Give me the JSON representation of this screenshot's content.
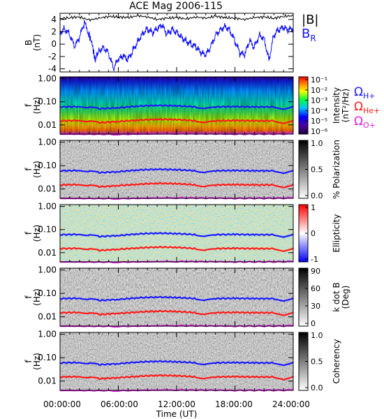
{
  "figure": {
    "title": "ACE Mag 2006-115",
    "xlabel": "Time (UT)",
    "x_ticks": [
      "00:00:00",
      "06:00:00",
      "12:00:00",
      "18:00:00",
      "24:00:00"
    ]
  },
  "legend": {
    "b_total": "|B|",
    "b_r_main": "B",
    "b_r_sub": "R",
    "cyclotron": [
      {
        "symbol": "Ω",
        "ion": "H+",
        "color": "#1a1aff"
      },
      {
        "symbol": "Ω",
        "ion": "He+",
        "color": "#ff1a1a"
      },
      {
        "symbol": "Ω",
        "ion": "O+",
        "color": "#e01ee0"
      }
    ]
  },
  "panels": [
    {
      "id": "b-field",
      "ylabel_1": "B",
      "ylabel_2": "(nT)",
      "y_ticks": [
        "4",
        "2",
        "0",
        "-2",
        "-4"
      ]
    },
    {
      "id": "intensity",
      "ylabel_1": "f",
      "ylabel_2": "(Hz)",
      "y_ticks": [
        "1.00",
        "0.10",
        "0.01"
      ],
      "colorbar_ticks": [
        "10⁻¹",
        "10⁻²",
        "10⁻³",
        "10⁻⁴",
        "10⁻⁵",
        "10⁻⁶"
      ],
      "colorbar_label_1": "Intensity",
      "colorbar_label_2": "(nT²/Hz)"
    },
    {
      "id": "polarization",
      "ylabel_1": "f",
      "ylabel_2": "(Hz)",
      "y_ticks": [
        "1.00",
        "0.10",
        "0.01"
      ],
      "colorbar_ticks": [
        "1.0",
        "0.5",
        "0.0"
      ],
      "colorbar_label_1": "% Polarization"
    },
    {
      "id": "ellipticity",
      "ylabel_1": "f",
      "ylabel_2": "(Hz)",
      "y_ticks": [
        "1.00",
        "0.10",
        "0.01"
      ],
      "colorbar_ticks": [
        "1",
        "0",
        "-1"
      ],
      "colorbar_label_1": "Ellipticity"
    },
    {
      "id": "k-dot-b",
      "ylabel_1": "f",
      "ylabel_2": "(Hz)",
      "y_ticks": [
        "1.00",
        "0.10",
        "0.01"
      ],
      "colorbar_ticks": [
        "90",
        "60",
        "30",
        "0"
      ],
      "colorbar_label_1": "k dot B",
      "colorbar_label_2": "(Deg)"
    },
    {
      "id": "coherency",
      "ylabel_1": "f",
      "ylabel_2": "(Hz)",
      "y_ticks": [
        "1.00",
        "0.10",
        "0.01"
      ],
      "colorbar_ticks": [
        "1.0",
        "0.5",
        "0.0"
      ],
      "colorbar_label_1": "Coherency"
    }
  ],
  "chart_data": [
    {
      "type": "line",
      "xlim": [
        0,
        24
      ],
      "ylim": [
        -4.5,
        5
      ],
      "series": [
        {
          "name": "|B|",
          "color": "#000000",
          "x": [
            0,
            1,
            2,
            3,
            4,
            5,
            6,
            7,
            8,
            9,
            10,
            11,
            12,
            13,
            14,
            15,
            16,
            17,
            18,
            19,
            20,
            21,
            22,
            23,
            24
          ],
          "y": [
            4.1,
            4.3,
            4.4,
            3.9,
            4.2,
            4.5,
            4.4,
            4.3,
            4.6,
            4.4,
            4.0,
            4.2,
            4.3,
            4.1,
            4.4,
            4.2,
            4.5,
            4.3,
            4.2,
            4.0,
            4.3,
            4.4,
            4.2,
            4.5,
            4.6
          ]
        },
        {
          "name": "BR",
          "color": "#1010ff",
          "x": [
            0,
            0.5,
            1,
            1.5,
            2,
            2.5,
            3,
            3.3,
            3.6,
            4,
            4.5,
            5,
            5.5,
            6,
            6.5,
            7,
            7.5,
            8,
            8.5,
            9,
            9.5,
            10,
            10.5,
            11,
            11.5,
            12,
            12.5,
            13,
            13.5,
            14,
            14.5,
            15,
            15.5,
            16,
            16.5,
            17,
            17.5,
            18,
            18.5,
            19,
            19.5,
            20,
            20.5,
            21,
            21.5,
            22,
            22.5,
            23,
            23.5,
            24
          ],
          "y": [
            2.0,
            2.5,
            1.5,
            -0.5,
            1.0,
            3.5,
            1.5,
            0.0,
            -2.5,
            -1.0,
            -0.5,
            -1.5,
            -4.0,
            -2.5,
            -2.0,
            -2.5,
            -1.0,
            0.5,
            1.8,
            2.5,
            1.8,
            2.4,
            3.0,
            1.5,
            2.4,
            2.0,
            1.2,
            0.5,
            0.0,
            -0.5,
            -1.5,
            -1.8,
            -0.5,
            1.5,
            2.4,
            3.0,
            2.2,
            0.5,
            -1.5,
            -1.8,
            0.5,
            -0.5,
            1.5,
            1.0,
            -2.5,
            1.5,
            2.3,
            2.6,
            2.2,
            2.6
          ]
        }
      ]
    },
    {
      "type": "heatmap",
      "ylim_log": [
        0.004,
        1.2
      ],
      "series": [
        {
          "name": "ΩH+",
          "color": "#1a1aff",
          "x": [
            0,
            2,
            3,
            4,
            6,
            8,
            10,
            12,
            14,
            15,
            16,
            18,
            20,
            22,
            23,
            24
          ],
          "y": [
            0.06,
            0.062,
            0.058,
            0.05,
            0.055,
            0.065,
            0.07,
            0.067,
            0.06,
            0.05,
            0.06,
            0.062,
            0.06,
            0.06,
            0.045,
            0.065
          ]
        },
        {
          "name": "ΩHe+",
          "color": "#ff1a1a",
          "x": [
            0,
            2,
            3,
            4,
            6,
            8,
            10,
            12,
            14,
            15,
            16,
            18,
            20,
            22,
            23,
            24
          ],
          "y": [
            0.015,
            0.0155,
            0.0145,
            0.0125,
            0.014,
            0.016,
            0.0175,
            0.017,
            0.015,
            0.0125,
            0.015,
            0.0155,
            0.015,
            0.015,
            0.011,
            0.016
          ]
        },
        {
          "name": "ΩO+",
          "color": "#e01ee0",
          "x": [
            0,
            6,
            12,
            18,
            24
          ],
          "y": [
            0.004,
            0.0039,
            0.0042,
            0.004,
            0.0041
          ]
        }
      ]
    }
  ]
}
